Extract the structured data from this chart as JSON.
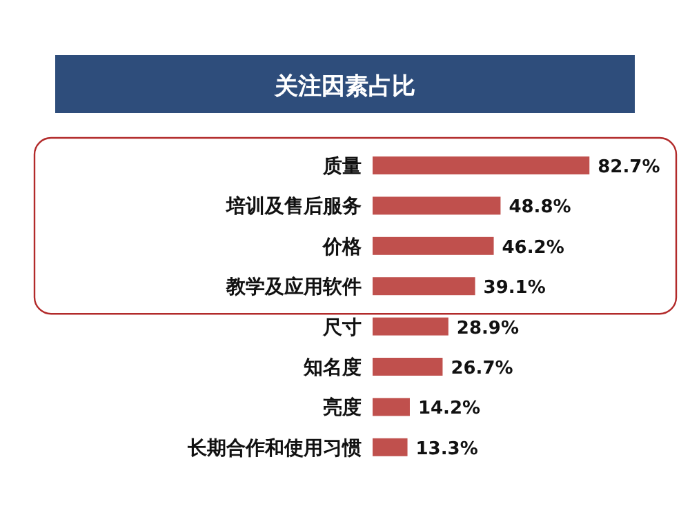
{
  "chart_data": {
    "type": "bar",
    "orientation": "horizontal",
    "title": "关注因素占比",
    "categories": [
      "质量",
      "培训及售后服务",
      "价格",
      "教学及应用软件",
      "尺寸",
      "知名度",
      "亮度",
      "长期合作和使用习惯"
    ],
    "values": [
      82.7,
      48.8,
      46.2,
      39.1,
      28.9,
      26.7,
      14.2,
      13.3
    ],
    "value_labels": [
      "82.7%",
      "48.8%",
      "46.2%",
      "39.1%",
      "28.9%",
      "26.7%",
      "14.2%",
      "13.3%"
    ],
    "color": "#c0504d"
  }
}
